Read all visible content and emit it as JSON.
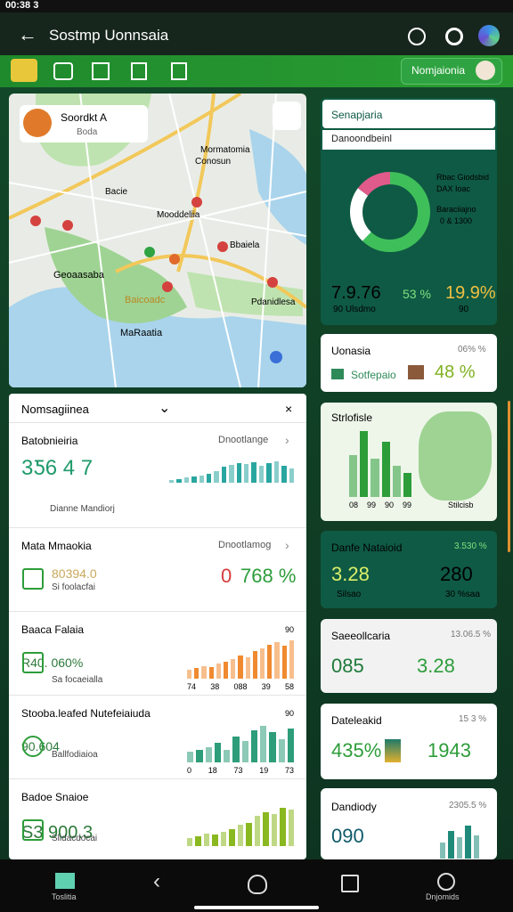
{
  "status": {
    "time": "00:38 3"
  },
  "appbar": {
    "title": "Sostmp Uonnsaia"
  },
  "toolbar": {
    "button": "Nomjaionia"
  },
  "map": {
    "card_title": "Soordkt A",
    "card_sub": "Boda",
    "labels": [
      "Mormatomia",
      "Conosun",
      "Bacie",
      "Mooddeliia",
      "Bbaiela",
      "Geoaasaba",
      "Baicoadc",
      "Pdanidlesa",
      "MaRaatia"
    ]
  },
  "list": {
    "title": "Nomsagiinea",
    "items": [
      {
        "title": "Batobnieiria",
        "link": "Dnootlange",
        "value": "3Ƽ6 4 7",
        "note": "Dianne Mandiorj",
        "bars": [
          10,
          14,
          18,
          22,
          26,
          30,
          40,
          55,
          62,
          70,
          66,
          72,
          60,
          68,
          74,
          58,
          50
        ]
      },
      {
        "title": "Mata Mmaokia",
        "link": "Dnootlamog",
        "value_a": "0",
        "value_b": "768 %",
        "sub": "80394.0",
        "note": "Si foolacfai"
      },
      {
        "title": "Baaca Falaia",
        "value": "R40. 060%",
        "note": "Sa focaeialla",
        "top": "90",
        "bars": [
          20,
          25,
          30,
          28,
          35,
          40,
          45,
          55,
          50,
          65,
          70,
          80,
          85,
          78,
          90
        ],
        "axis": [
          "74",
          "38",
          "088",
          "39",
          "58"
        ]
      },
      {
        "title": "Stooba.leafed Nutefeiaiuda",
        "value": "90.604",
        "note": "Ballfodiaioa",
        "top": "90",
        "bars": [
          25,
          30,
          35,
          45,
          30,
          60,
          50,
          75,
          85,
          70,
          55,
          80
        ],
        "axis": [
          "0",
          "18",
          "73",
          "19",
          "73"
        ]
      },
      {
        "title": "Badoe Snaioe",
        "value": "S3 900.3",
        "note": "Slidacdocai",
        "bars": [
          18,
          22,
          30,
          28,
          34,
          40,
          50,
          55,
          70,
          80,
          75,
          90,
          85
        ]
      }
    ]
  },
  "right": {
    "cards": [
      {
        "title": "Senapjaria",
        "sub": "Danoondbeinl",
        "legend": [
          "Rbac Giodsbid",
          "DAX Ioac",
          "Baraciiajno",
          "0 & 1300"
        ],
        "donut": [
          62,
          23,
          15
        ],
        "big": "7.9.76",
        "big_sub": "90 Ulsdmo",
        "mid": "53 %",
        "right": "19.9%",
        "right_sub": "90"
      },
      {
        "title": "Uonasia",
        "pct": "06% %",
        "label": "Sotfepaio",
        "value": "48 %"
      },
      {
        "title": "Strlofisle",
        "bars": [
          60,
          95,
          55,
          80,
          45,
          35
        ],
        "axis": [
          "08",
          "99",
          "90",
          "99"
        ],
        "note": "Stilcisb"
      },
      {
        "title": "Danfe Nataioid",
        "pct": "3.530 %",
        "a": "3.28",
        "a_sub": "Silsao",
        "b": "280",
        "b_sub": "30 %saa"
      },
      {
        "title": "Saeeollcaria",
        "pct": "13.06.5 %",
        "a": "085",
        "b": "3.28"
      },
      {
        "title": "Dateleakid",
        "pct": "15 3 %",
        "a": "435%",
        "b": "1943"
      },
      {
        "title": "Dandiody",
        "pct": "2305.5 %",
        "a": "090",
        "bars": [
          40,
          70,
          55,
          85,
          60
        ]
      }
    ]
  },
  "nav": {
    "left": "Toslitia",
    "right": "Dnjomids"
  }
}
